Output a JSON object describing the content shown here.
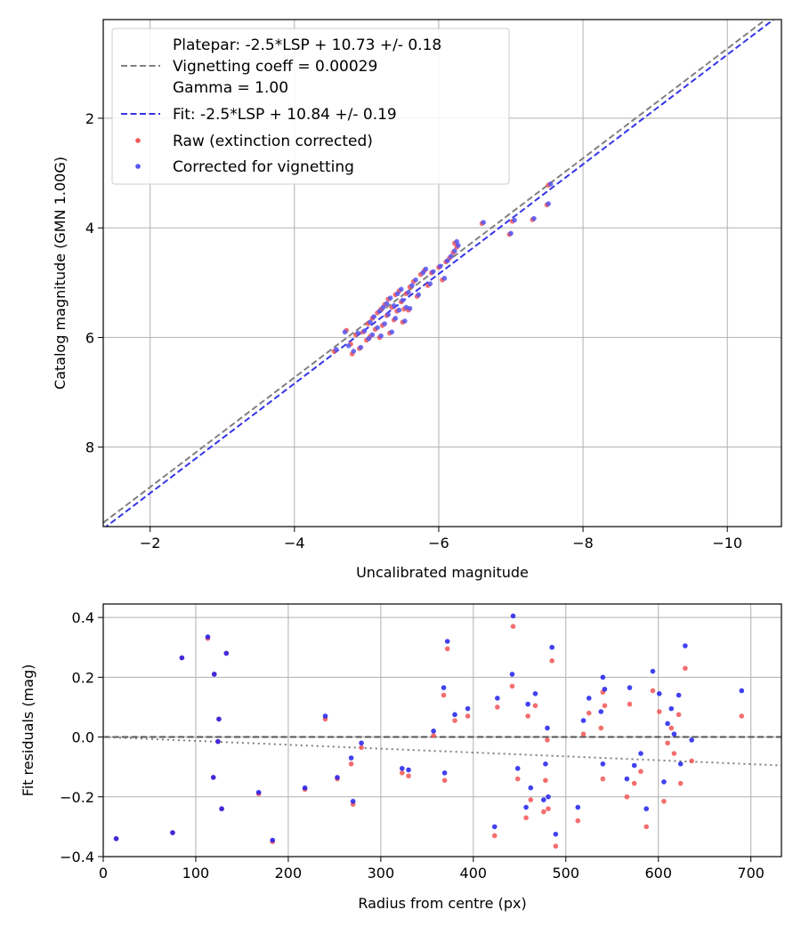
{
  "chart_data": [
    {
      "type": "scatter",
      "xlabel": "Uncalibrated magnitude",
      "ylabel": "Catalog magnitude (GMN 1.00G)",
      "xlim": [
        -1.35,
        -10.75
      ],
      "ylim": [
        9.45,
        0.2
      ],
      "x_ticks": [
        -2,
        -4,
        -6,
        -8,
        -10
      ],
      "x_tick_labels": [
        "−2",
        "−4",
        "−6",
        "−8",
        "−10"
      ],
      "y_ticks": [
        2,
        4,
        6,
        8
      ],
      "y_tick_labels": [
        "2",
        "4",
        "6",
        "8"
      ],
      "grid": true,
      "legend_location": "upper-left",
      "legend": [
        {
          "kind": "line",
          "color": "#808080",
          "dash": true,
          "lines": [
            "Platepar: -2.5*LSP + 10.73 +/- 0.18",
            "Vignetting coeff = 0.00029",
            "Gamma = 1.00"
          ]
        },
        {
          "kind": "line",
          "color": "#3535e8",
          "dash": true,
          "lines": [
            "Fit: -2.5*LSP + 10.84 +/- 0.19"
          ]
        },
        {
          "kind": "marker",
          "color": "#f25555",
          "lines": [
            "Raw (extinction corrected)"
          ]
        },
        {
          "kind": "marker",
          "color": "#5555f2",
          "lines": [
            "Corrected for vignetting"
          ]
        }
      ],
      "lines": [
        {
          "name": "Platepar",
          "slope": 1,
          "intercept": 10.73,
          "color": "#808080"
        },
        {
          "name": "Fit",
          "slope": 1,
          "intercept": 10.84,
          "color": "#3535e8"
        }
      ],
      "series": [
        {
          "name": "Raw (extinction corrected)",
          "color": "#f25555",
          "points": [
            [
              -4.55,
              6.25
            ],
            [
              -4.72,
              5.87
            ],
            [
              -4.78,
              6.12
            ],
            [
              -4.8,
              6.3
            ],
            [
              -4.85,
              5.95
            ],
            [
              -4.9,
              6.2
            ],
            [
              -4.95,
              5.9
            ],
            [
              -5.0,
              6.05
            ],
            [
              -5.02,
              5.75
            ],
            [
              -5.05,
              5.98
            ],
            [
              -5.08,
              5.65
            ],
            [
              -5.12,
              5.85
            ],
            [
              -5.15,
              5.55
            ],
            [
              -5.18,
              6.0
            ],
            [
              -5.2,
              5.48
            ],
            [
              -5.22,
              5.78
            ],
            [
              -5.25,
              5.4
            ],
            [
              -5.28,
              5.6
            ],
            [
              -5.3,
              5.3
            ],
            [
              -5.32,
              5.92
            ],
            [
              -5.35,
              5.45
            ],
            [
              -5.38,
              5.68
            ],
            [
              -5.4,
              5.22
            ],
            [
              -5.42,
              5.52
            ],
            [
              -5.45,
              5.15
            ],
            [
              -5.48,
              5.35
            ],
            [
              -5.5,
              5.72
            ],
            [
              -5.52,
              5.48
            ],
            [
              -5.55,
              5.2
            ],
            [
              -5.58,
              5.5
            ],
            [
              -5.6,
              5.08
            ],
            [
              -5.65,
              4.98
            ],
            [
              -5.7,
              5.25
            ],
            [
              -5.75,
              4.85
            ],
            [
              -5.8,
              4.78
            ],
            [
              -5.85,
              5.05
            ],
            [
              -5.9,
              4.82
            ],
            [
              -6.0,
              4.72
            ],
            [
              -6.05,
              4.95
            ],
            [
              -6.1,
              4.62
            ],
            [
              -6.15,
              4.55
            ],
            [
              -6.2,
              4.45
            ],
            [
              -6.22,
              4.28
            ],
            [
              -6.25,
              4.35
            ],
            [
              -6.6,
              3.92
            ],
            [
              -6.98,
              4.12
            ],
            [
              -7.02,
              3.88
            ],
            [
              -7.3,
              3.85
            ],
            [
              -7.5,
              3.58
            ],
            [
              -7.52,
              3.22
            ]
          ]
        },
        {
          "name": "Corrected for vignetting",
          "color": "#5555f2",
          "points": [
            [
              -4.58,
              6.22
            ],
            [
              -4.7,
              5.9
            ],
            [
              -4.75,
              6.15
            ],
            [
              -4.82,
              6.25
            ],
            [
              -4.88,
              5.92
            ],
            [
              -4.92,
              6.18
            ],
            [
              -4.97,
              5.88
            ],
            [
              -5.03,
              6.02
            ],
            [
              -5.05,
              5.72
            ],
            [
              -5.08,
              5.95
            ],
            [
              -5.1,
              5.62
            ],
            [
              -5.15,
              5.82
            ],
            [
              -5.18,
              5.52
            ],
            [
              -5.2,
              5.97
            ],
            [
              -5.23,
              5.45
            ],
            [
              -5.25,
              5.75
            ],
            [
              -5.28,
              5.38
            ],
            [
              -5.3,
              5.58
            ],
            [
              -5.33,
              5.28
            ],
            [
              -5.35,
              5.9
            ],
            [
              -5.38,
              5.42
            ],
            [
              -5.4,
              5.65
            ],
            [
              -5.43,
              5.2
            ],
            [
              -5.45,
              5.5
            ],
            [
              -5.48,
              5.12
            ],
            [
              -5.5,
              5.32
            ],
            [
              -5.53,
              5.7
            ],
            [
              -5.55,
              5.45
            ],
            [
              -5.58,
              5.18
            ],
            [
              -5.6,
              5.47
            ],
            [
              -5.63,
              5.05
            ],
            [
              -5.68,
              4.95
            ],
            [
              -5.72,
              5.22
            ],
            [
              -5.78,
              4.82
            ],
            [
              -5.82,
              4.75
            ],
            [
              -5.88,
              5.02
            ],
            [
              -5.92,
              4.8
            ],
            [
              -6.02,
              4.7
            ],
            [
              -6.08,
              4.92
            ],
            [
              -6.12,
              4.6
            ],
            [
              -6.17,
              4.52
            ],
            [
              -6.22,
              4.42
            ],
            [
              -6.25,
              4.25
            ],
            [
              -6.27,
              4.32
            ],
            [
              -6.62,
              3.9
            ],
            [
              -7.0,
              4.1
            ],
            [
              -7.05,
              3.86
            ],
            [
              -7.32,
              3.83
            ],
            [
              -7.52,
              3.56
            ],
            [
              -7.55,
              3.2
            ]
          ]
        }
      ]
    },
    {
      "type": "scatter",
      "xlabel": "Radius from centre (px)",
      "ylabel": "Fit residuals (mag)",
      "xlim": [
        0,
        733
      ],
      "ylim": [
        -0.4,
        0.445
      ],
      "x_ticks": [
        0,
        100,
        200,
        300,
        400,
        500,
        600,
        700
      ],
      "x_tick_labels": [
        "0",
        "100",
        "200",
        "300",
        "400",
        "500",
        "600",
        "700"
      ],
      "y_ticks": [
        -0.4,
        -0.2,
        0.0,
        0.2,
        0.4
      ],
      "y_tick_labels": [
        "−0.4",
        "−0.2",
        "0.0",
        "0.2",
        "0.4"
      ],
      "grid": true,
      "lines": [
        {
          "name": "zero",
          "points": [
            [
              0,
              0
            ],
            [
              733,
              0
            ]
          ],
          "color": "#555555",
          "style": "dashed"
        },
        {
          "name": "vignetting trend",
          "points": [
            [
              0,
              0
            ],
            [
              733,
              -0.095
            ]
          ],
          "color": "#808080",
          "style": "dotted"
        }
      ],
      "series": [
        {
          "name": "Raw",
          "color": "#f25555",
          "points": [
            [
              14,
              -0.34
            ],
            [
              75,
              -0.32
            ],
            [
              85,
              0.265
            ],
            [
              113,
              0.33
            ],
            [
              119,
              -0.135
            ],
            [
              120,
              0.21
            ],
            [
              124,
              -0.015
            ],
            [
              125,
              0.06
            ],
            [
              128,
              -0.24
            ],
            [
              133,
              0.28
            ],
            [
              168,
              -0.19
            ],
            [
              183,
              -0.35
            ],
            [
              218,
              -0.175
            ],
            [
              240,
              0.06
            ],
            [
              253,
              -0.14
            ],
            [
              268,
              -0.09
            ],
            [
              270,
              -0.225
            ],
            [
              279,
              -0.035
            ],
            [
              323,
              -0.12
            ],
            [
              330,
              -0.13
            ],
            [
              357,
              0.005
            ],
            [
              368,
              0.14
            ],
            [
              369,
              -0.145
            ],
            [
              372,
              0.295
            ],
            [
              380,
              0.055
            ],
            [
              394,
              0.07
            ],
            [
              423,
              -0.33
            ],
            [
              426,
              0.1
            ],
            [
              442,
              0.17
            ],
            [
              443,
              0.37
            ],
            [
              448,
              -0.14
            ],
            [
              457,
              -0.27
            ],
            [
              459,
              0.07
            ],
            [
              462,
              -0.21
            ],
            [
              467,
              0.105
            ],
            [
              476,
              -0.25
            ],
            [
              478,
              -0.145
            ],
            [
              480,
              -0.01
            ],
            [
              481,
              -0.24
            ],
            [
              485,
              0.255
            ],
            [
              489,
              -0.365
            ],
            [
              513,
              -0.28
            ],
            [
              519,
              0.01
            ],
            [
              525,
              0.08
            ],
            [
              538,
              0.03
            ],
            [
              540,
              0.15
            ],
            [
              540,
              -0.14
            ],
            [
              542,
              0.105
            ],
            [
              566,
              -0.2
            ],
            [
              569,
              0.11
            ],
            [
              574,
              -0.155
            ],
            [
              581,
              -0.115
            ],
            [
              587,
              -0.3
            ],
            [
              594,
              0.155
            ],
            [
              601,
              0.085
            ],
            [
              606,
              -0.215
            ],
            [
              610,
              -0.02
            ],
            [
              614,
              0.03
            ],
            [
              617,
              -0.055
            ],
            [
              622,
              0.075
            ],
            [
              624,
              -0.155
            ],
            [
              629,
              0.23
            ],
            [
              636,
              -0.08
            ],
            [
              690,
              0.07
            ]
          ]
        },
        {
          "name": "Corrected",
          "color": "#2020ee",
          "points": [
            [
              14,
              -0.34
            ],
            [
              75,
              -0.32
            ],
            [
              85,
              0.265
            ],
            [
              113,
              0.335
            ],
            [
              119,
              -0.135
            ],
            [
              120,
              0.21
            ],
            [
              124,
              -0.015
            ],
            [
              125,
              0.06
            ],
            [
              128,
              -0.24
            ],
            [
              133,
              0.28
            ],
            [
              168,
              -0.185
            ],
            [
              183,
              -0.345
            ],
            [
              218,
              -0.17
            ],
            [
              240,
              0.07
            ],
            [
              253,
              -0.135
            ],
            [
              268,
              -0.07
            ],
            [
              270,
              -0.215
            ],
            [
              279,
              -0.02
            ],
            [
              323,
              -0.105
            ],
            [
              330,
              -0.11
            ],
            [
              357,
              0.02
            ],
            [
              368,
              0.165
            ],
            [
              369,
              -0.12
            ],
            [
              372,
              0.32
            ],
            [
              380,
              0.075
            ],
            [
              394,
              0.095
            ],
            [
              423,
              -0.3
            ],
            [
              426,
              0.13
            ],
            [
              442,
              0.21
            ],
            [
              443,
              0.405
            ],
            [
              448,
              -0.105
            ],
            [
              457,
              -0.235
            ],
            [
              459,
              0.11
            ],
            [
              462,
              -0.17
            ],
            [
              467,
              0.145
            ],
            [
              476,
              -0.21
            ],
            [
              478,
              -0.09
            ],
            [
              480,
              0.03
            ],
            [
              481,
              -0.2
            ],
            [
              485,
              0.3
            ],
            [
              489,
              -0.325
            ],
            [
              513,
              -0.235
            ],
            [
              519,
              0.055
            ],
            [
              525,
              0.13
            ],
            [
              538,
              0.085
            ],
            [
              540,
              0.2
            ],
            [
              540,
              -0.09
            ],
            [
              542,
              0.16
            ],
            [
              566,
              -0.14
            ],
            [
              569,
              0.165
            ],
            [
              574,
              -0.095
            ],
            [
              581,
              -0.055
            ],
            [
              587,
              -0.24
            ],
            [
              594,
              0.22
            ],
            [
              601,
              0.145
            ],
            [
              606,
              -0.15
            ],
            [
              610,
              0.045
            ],
            [
              614,
              0.095
            ],
            [
              617,
              0.01
            ],
            [
              622,
              0.14
            ],
            [
              624,
              -0.09
            ],
            [
              629,
              0.305
            ],
            [
              636,
              -0.01
            ],
            [
              690,
              0.155
            ]
          ]
        }
      ]
    }
  ]
}
